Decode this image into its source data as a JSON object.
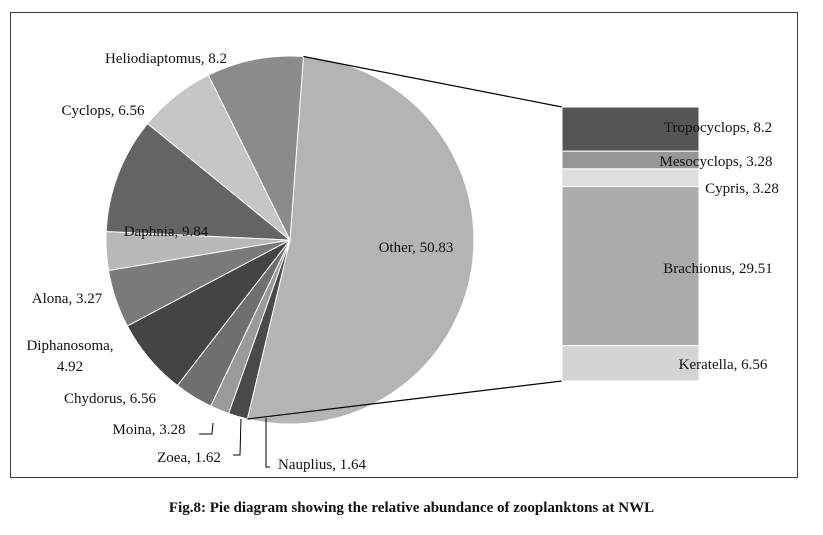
{
  "chart_data": {
    "type": "pie",
    "subtype": "bar-of-pie",
    "title": "Fig.8: Pie diagram showing the relative abundance of zooplanktons at NWL",
    "pie": {
      "slices": [
        {
          "label": "Other",
          "value": 50.83,
          "text": "Other, 50.83",
          "color": "#b3b5b5"
        },
        {
          "label": "Nauplius",
          "value": 1.64,
          "text": "Nauplius, 1.64",
          "color": "#4a4a4a"
        },
        {
          "label": "Zoea",
          "value": 1.62,
          "text": "Zoea, 1.62",
          "color": "#9a9a9a"
        },
        {
          "label": "Moina",
          "value": 3.28,
          "text": "Moina, 3.28",
          "color": "#6f6f6f"
        },
        {
          "label": "Chydorus",
          "value": 6.56,
          "text": "Chydorus, 6.56",
          "color": "#444444"
        },
        {
          "label": "Diphanosoma",
          "value": 4.92,
          "text": "Diphanosoma, 4.92",
          "color": "#7a7a7a"
        },
        {
          "label": "Alona",
          "value": 3.27,
          "text": "Alona, 3.27",
          "color": "#b8b8b8"
        },
        {
          "label": "Daphnia",
          "value": 9.84,
          "text": "Daphnia, 9.84",
          "color": "#646464"
        },
        {
          "label": "Cyclops",
          "value": 6.56,
          "text": "Cyclops, 6.56",
          "color": "#c6c6c6"
        },
        {
          "label": "Heliodiaptomus",
          "value": 8.2,
          "text": "Heliodiaptomus, 8.2",
          "color": "#8b8b8b"
        }
      ]
    },
    "bar": {
      "segments": [
        {
          "label": "Tropocyclops",
          "value": 8.2,
          "text": "Tropocyclops, 8.2",
          "color": "#555555"
        },
        {
          "label": "Mesocyclops",
          "value": 3.28,
          "text": "Mesocyclops, 3.28",
          "color": "#979797"
        },
        {
          "label": "Cypris",
          "value": 3.28,
          "text": "Cypris, 3.28",
          "color": "#dedede"
        },
        {
          "label": "Brachionus",
          "value": 29.51,
          "text": "Brachionus, 29.51",
          "color": "#ababab"
        },
        {
          "label": "Keratella",
          "value": 6.56,
          "text": "Keratella, 6.56",
          "color": "#d4d4d4"
        }
      ]
    }
  }
}
